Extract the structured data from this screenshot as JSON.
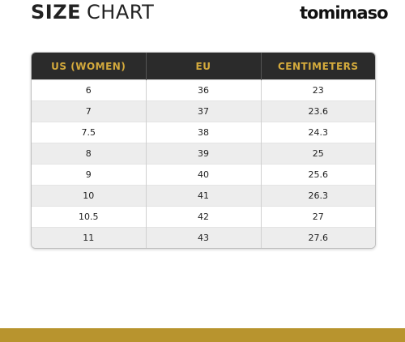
{
  "header": {
    "title_bold": "SIZE",
    "title_light": "CHART",
    "brand": "tomimaso"
  },
  "table": {
    "columns": [
      "US (WOMEN)",
      "EU",
      "CENTIMETERS"
    ],
    "rows": [
      [
        "6",
        "36",
        "23"
      ],
      [
        "7",
        "37",
        "23.6"
      ],
      [
        "7.5",
        "38",
        "24.3"
      ],
      [
        "8",
        "39",
        "25"
      ],
      [
        "9",
        "40",
        "25.6"
      ],
      [
        "10",
        "41",
        "26.3"
      ],
      [
        "10.5",
        "42",
        "27"
      ],
      [
        "11",
        "43",
        "27.6"
      ]
    ]
  },
  "colors": {
    "header_bg": "#2b2b2b",
    "header_text": "#d4aa3c",
    "stripe": "#ededed",
    "footer_bar": "#b8942e"
  }
}
